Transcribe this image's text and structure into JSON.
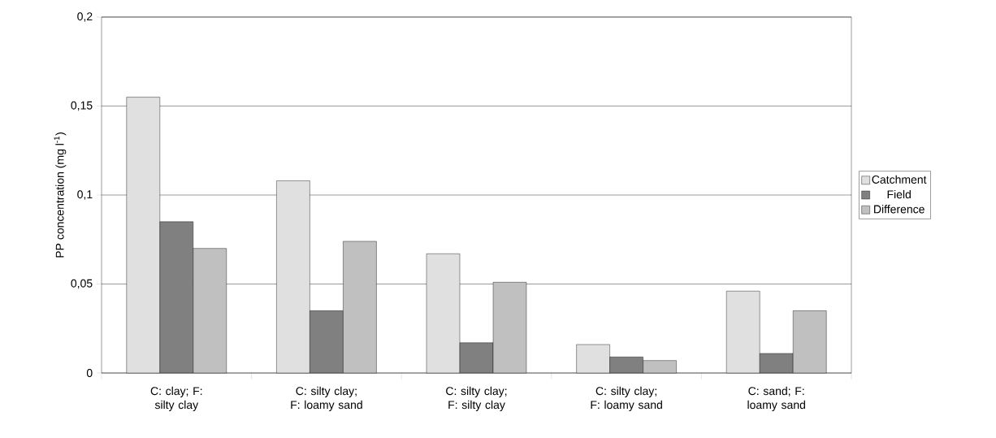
{
  "chart_data": {
    "type": "bar",
    "ylabel": "PP concentration (mg l$^{-1}$)",
    "categories": [
      "C: clay; F: silty clay",
      "C: silty clay; F: loamy sand",
      "C: silty clay; F: silty clay",
      "C: silty clay; F: loamy sand",
      "C: sand; F: loamy sand"
    ],
    "series": [
      {
        "name": "Catchment",
        "color": "#e0e0e0",
        "values": [
          0.155,
          0.108,
          0.067,
          0.016,
          0.046
        ]
      },
      {
        "name": "Field",
        "color": "#808080",
        "values": [
          0.085,
          0.035,
          0.017,
          0.009,
          0.011
        ]
      },
      {
        "name": "Difference",
        "color": "#c0c0c0",
        "values": [
          0.07,
          0.074,
          0.051,
          0.007,
          0.035
        ]
      }
    ],
    "ylim": [
      0,
      0.2
    ],
    "yticks": [
      {
        "value": 0,
        "label": "0"
      },
      {
        "value": 0.05,
        "label": "0,05"
      },
      {
        "value": 0.1,
        "label": "0,1"
      },
      {
        "value": 0.15,
        "label": "0,15"
      },
      {
        "value": 0.2,
        "label": "0,2"
      }
    ],
    "grid": "y",
    "legend": "right"
  }
}
